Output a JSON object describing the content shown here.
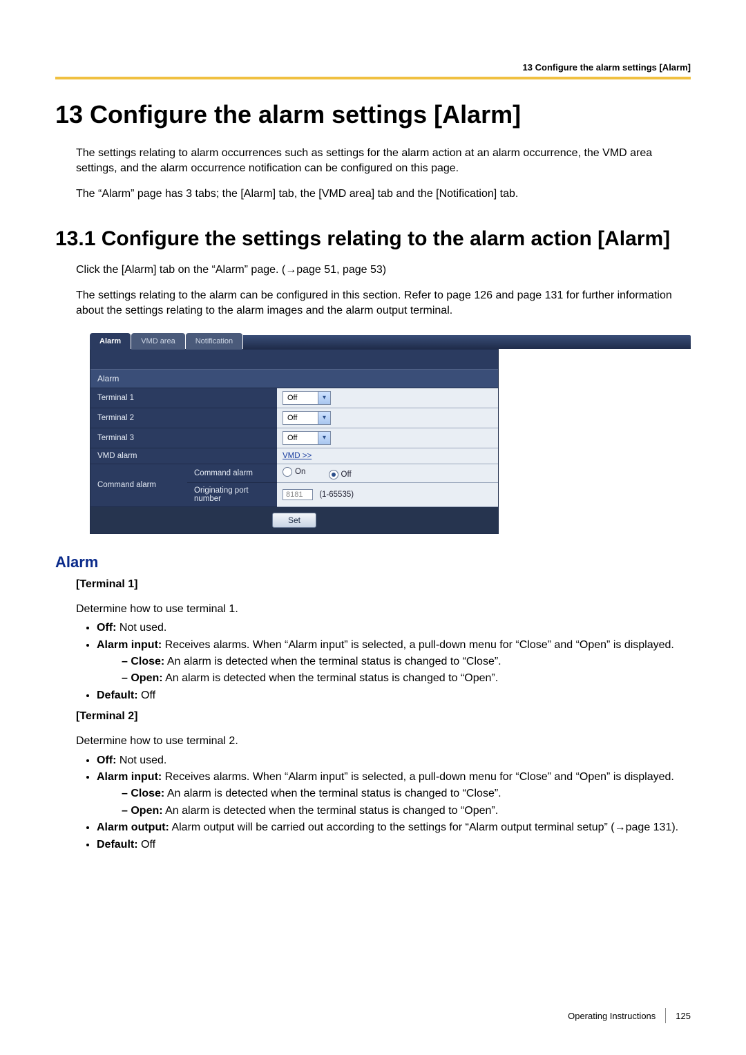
{
  "header": {
    "running_head": "13 Configure the alarm settings [Alarm]",
    "gold_color": "#f0c040"
  },
  "chapter": {
    "title": "13   Configure the alarm settings [Alarm]",
    "intro1": "The settings relating to alarm occurrences such as settings for the alarm action at an alarm occurrence, the VMD area settings, and the alarm occurrence notification can be configured on this page.",
    "intro2": "The “Alarm” page has 3 tabs; the [Alarm] tab, the [VMD area] tab and the [Notification] tab."
  },
  "section": {
    "title": "13.1  Configure the settings relating to the alarm action [Alarm]",
    "p1": "Click the [Alarm] tab on the “Alarm” page. (→page 51, page 53)",
    "p2": "The settings relating to the alarm can be configured in this section. Refer to page 126 and page 131 for further information about the settings relating to the alarm images and the alarm output terminal."
  },
  "ui": {
    "tabs": {
      "alarm": "Alarm",
      "vmd": "VMD area",
      "notification": "Notification"
    },
    "group_label": "Alarm",
    "rows": {
      "terminal1": {
        "label": "Terminal 1",
        "value": "Off"
      },
      "terminal2": {
        "label": "Terminal 2",
        "value": "Off"
      },
      "terminal3": {
        "label": "Terminal 3",
        "value": "Off"
      },
      "vmd_alarm": {
        "label": "VMD alarm",
        "link": "VMD >>"
      },
      "command_alarm": {
        "label": "Command alarm",
        "sub1": "Command alarm",
        "on": "On",
        "off": "Off",
        "sub2": "Originating port number",
        "port": "8181",
        "range": "(1-65535)"
      }
    },
    "set_button": "Set"
  },
  "doc": {
    "alarm_heading": "Alarm",
    "t1": {
      "head": "[Terminal 1]",
      "lead": "Determine how to use terminal 1.",
      "off_b": "Off:",
      "off_t": " Not used.",
      "ai_b": "Alarm input:",
      "ai_t": " Receives alarms. When “Alarm input” is selected, a pull-down menu for “Close” and “Open” is displayed.",
      "close_b": "Close:",
      "close_t": " An alarm is detected when the terminal status is changed to “Close”.",
      "open_b": "Open:",
      "open_t": " An alarm is detected when the terminal status is changed to “Open”.",
      "def_b": "Default:",
      "def_t": " Off"
    },
    "t2": {
      "head": "[Terminal 2]",
      "lead": "Determine how to use terminal 2.",
      "off_b": "Off:",
      "off_t": " Not used.",
      "ai_b": "Alarm input:",
      "ai_t": " Receives alarms. When “Alarm input” is selected, a pull-down menu for “Close” and “Open” is displayed.",
      "close_b": "Close:",
      "close_t": " An alarm is detected when the terminal status is changed to “Close”.",
      "open_b": "Open:",
      "open_t": " An alarm is detected when the terminal status is changed to “Open”.",
      "ao_b": "Alarm output:",
      "ao_t": " Alarm output will be carried out according to the settings for “Alarm output terminal setup” (→page 131).",
      "def_b": "Default:",
      "def_t": " Off"
    }
  },
  "footer": {
    "label": "Operating Instructions",
    "page": "125"
  }
}
